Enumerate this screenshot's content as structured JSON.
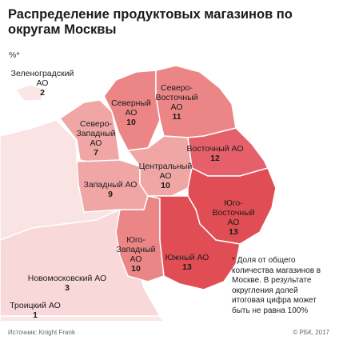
{
  "title": "Распределение продуктовых магазинов по округам Москвы",
  "unit": "%*",
  "colors": {
    "very_light": "#f8d8d8",
    "light": "#f1a6a6",
    "medium": "#ec8686",
    "strong": "#e5606a",
    "darkest": "#e04d55",
    "border": "#ffffff"
  },
  "districts": [
    {
      "name": "Зеленоградский АО",
      "value": "2"
    },
    {
      "name": "Северо-Западный АО",
      "value": "7"
    },
    {
      "name": "Северный АО",
      "value": "10"
    },
    {
      "name": "Северо-Восточный АО",
      "value": "11"
    },
    {
      "name": "Восточный АО",
      "value": "12"
    },
    {
      "name": "Западный АО",
      "value": "9"
    },
    {
      "name": "Центральный АО",
      "value": "10"
    },
    {
      "name": "Юго-Восточный АО",
      "value": "13"
    },
    {
      "name": "Юго-Западный АО",
      "value": "10"
    },
    {
      "name": "Южный АО",
      "value": "13"
    },
    {
      "name": "Новомосковский АО",
      "value": "3"
    },
    {
      "name": "Троицкий АО",
      "value": "1"
    }
  ],
  "footnote": "* Доля от общего количества магазинов в Москве. В результате округления долей итоговая цифра может быть не равна 100%",
  "source": "Источник: Knight Frank",
  "copyright": "© РБК, 2017"
}
